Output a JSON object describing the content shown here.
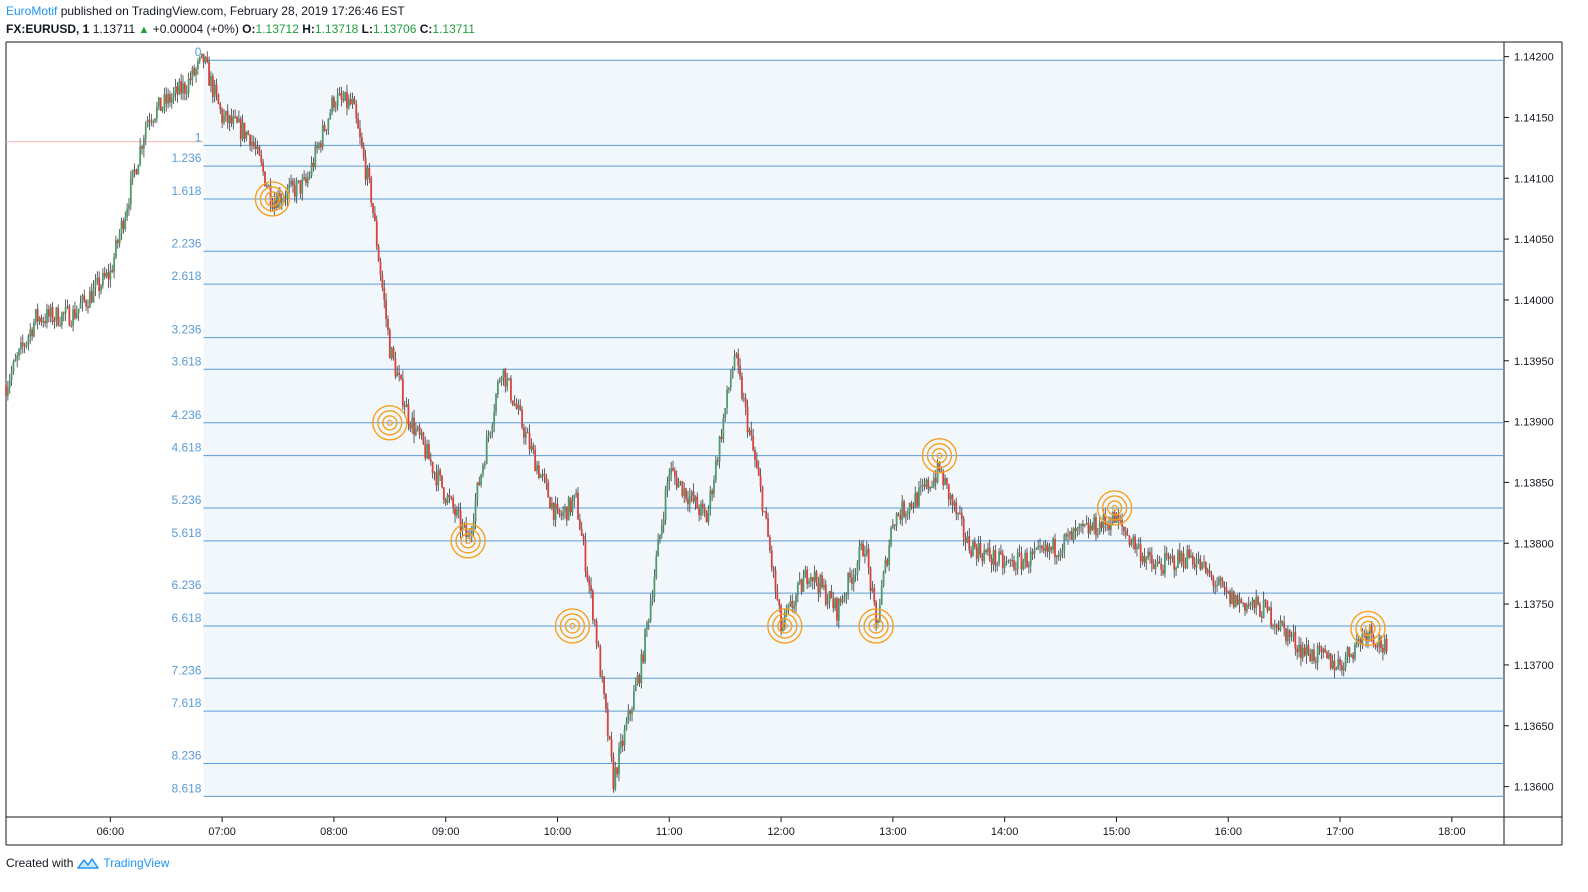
{
  "header": {
    "author": "EuroMotif",
    "published_text": "published on TradingView.com, February 28, 2019 17:26:46 EST",
    "symbol": "FX:EURUSD, 1",
    "last": "1.13711",
    "change": "+0.00004 (+0%)",
    "o_label": "O:",
    "o": "1.13712",
    "h_label": "H:",
    "h": "1.13718",
    "l_label": "L:",
    "l": "1.13706",
    "c_label": "C:",
    "c": "1.13711"
  },
  "footer": {
    "created_with": "Created with",
    "brand": "TradingView"
  },
  "colors": {
    "up": "#4f9a6c",
    "down": "#d6433a",
    "fib_line": "#5b9bd5",
    "fib_label": "#5b9bd5",
    "fib_fill": "#f2f7fc",
    "target": "#f5a020",
    "axis": "#131722"
  },
  "chart_data": {
    "type": "line",
    "title": "",
    "xlabel": "",
    "ylabel": "",
    "ylim": [
      1.13575,
      1.14212
    ],
    "xlim": [
      "05:04",
      "18:28"
    ],
    "x_ticks": [
      "06:00",
      "07:00",
      "08:00",
      "09:00",
      "10:00",
      "11:00",
      "12:00",
      "13:00",
      "14:00",
      "15:00",
      "16:00",
      "17:00",
      "18:00"
    ],
    "y_ticks": [
      "1.14200",
      "1.14150",
      "1.14100",
      "1.14050",
      "1.14000",
      "1.13950",
      "1.13900",
      "1.13850",
      "1.13800",
      "1.13750",
      "1.13700",
      "1.13650",
      "1.13600"
    ],
    "grid": false,
    "fib_extension": {
      "start_time": "06:50",
      "levels": [
        {
          "label": "0",
          "price": 1.14197
        },
        {
          "label": "1",
          "price": 1.14127
        },
        {
          "label": "1.236",
          "price": 1.1411
        },
        {
          "label": "1.618",
          "price": 1.14083
        },
        {
          "label": "2.236",
          "price": 1.1404
        },
        {
          "label": "2.618",
          "price": 1.14013
        },
        {
          "label": "3.236",
          "price": 1.13969
        },
        {
          "label": "3.618",
          "price": 1.13943
        },
        {
          "label": "4.236",
          "price": 1.13899
        },
        {
          "label": "4.618",
          "price": 1.13872
        },
        {
          "label": "5.236",
          "price": 1.13829
        },
        {
          "label": "5.618",
          "price": 1.13802
        },
        {
          "label": "6.236",
          "price": 1.13759
        },
        {
          "label": "6.618",
          "price": 1.13732
        },
        {
          "label": "7.236",
          "price": 1.13689
        },
        {
          "label": "7.618",
          "price": 1.13662
        },
        {
          "label": "8.236",
          "price": 1.13619
        },
        {
          "label": "8.618",
          "price": 1.13592
        }
      ]
    },
    "reference_line": {
      "price": 1.1413
    },
    "targets": [
      {
        "time": "07:27",
        "price": 1.14083
      },
      {
        "time": "08:30",
        "price": 1.13899
      },
      {
        "time": "09:12",
        "price": 1.13802
      },
      {
        "time": "10:08",
        "price": 1.13732
      },
      {
        "time": "12:02",
        "price": 1.13732
      },
      {
        "time": "12:51",
        "price": 1.13732
      },
      {
        "time": "13:25",
        "price": 1.13872
      },
      {
        "time": "14:59",
        "price": 1.13829
      },
      {
        "time": "17:15",
        "price": 1.1373
      }
    ],
    "series": [
      {
        "x": [
          "05:04",
          "05:20",
          "05:40",
          "06:00",
          "06:20",
          "06:40",
          "06:50",
          "07:00",
          "07:15",
          "07:27",
          "07:45",
          "08:00",
          "08:10",
          "08:20",
          "08:30",
          "08:40",
          "09:00",
          "09:12",
          "09:30",
          "09:45",
          "10:00",
          "10:10",
          "10:20",
          "10:30",
          "10:45",
          "11:00",
          "11:20",
          "11:35",
          "11:50",
          "12:00",
          "12:15",
          "12:30",
          "12:45",
          "12:51",
          "13:00",
          "13:15",
          "13:25",
          "13:40",
          "14:00",
          "14:20",
          "14:40",
          "14:59",
          "15:20",
          "15:40",
          "16:00",
          "16:20",
          "16:40",
          "17:00",
          "17:15",
          "17:25"
        ],
        "values": [
          1.1393,
          1.13985,
          1.13988,
          1.14022,
          1.1415,
          1.14175,
          1.14197,
          1.1415,
          1.14135,
          1.14083,
          1.14095,
          1.14165,
          1.1416,
          1.14085,
          1.1396,
          1.13905,
          1.1384,
          1.13803,
          1.13945,
          1.1388,
          1.1382,
          1.13835,
          1.13735,
          1.13605,
          1.137,
          1.1386,
          1.1382,
          1.13955,
          1.13835,
          1.1373,
          1.13778,
          1.13745,
          1.138,
          1.13732,
          1.1382,
          1.1384,
          1.1386,
          1.138,
          1.13782,
          1.1379,
          1.13808,
          1.1382,
          1.1378,
          1.1379,
          1.13755,
          1.13745,
          1.13712,
          1.137,
          1.1373,
          1.13711
        ]
      }
    ]
  }
}
